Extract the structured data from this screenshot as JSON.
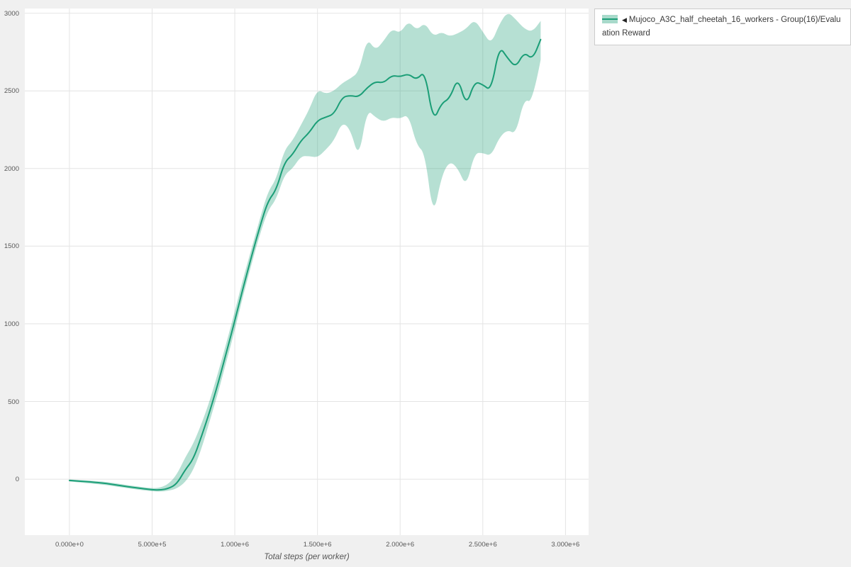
{
  "legend": {
    "toggle_icon": "◀"
  },
  "chart_data": {
    "type": "line",
    "title": "",
    "xlabel": "Total steps (per worker)",
    "ylabel": "",
    "grid": true,
    "legend_position": "top-right",
    "xlim": [
      -270000,
      3140000
    ],
    "ylim": [
      -360,
      3030
    ],
    "x_tick_values": [
      0,
      500000,
      1000000,
      1500000,
      2000000,
      2500000,
      3000000
    ],
    "x_tick_labels": [
      "0.000e+0",
      "5.000e+5",
      "1.000e+6",
      "1.500e+6",
      "2.000e+6",
      "2.500e+6",
      "3.000e+6"
    ],
    "y_tick_values": [
      0,
      500,
      1000,
      1500,
      2000,
      2500,
      3000
    ],
    "y_tick_labels": [
      "0",
      "500",
      "1000",
      "1500",
      "2000",
      "2500",
      "3000"
    ],
    "grid_color": "#e4e4e4",
    "series": [
      {
        "name": "Mujoco_A3C_half_cheetah_16_workers - Group(16)/Evaluation Reward",
        "color": "#1b9e77",
        "band_color": "#1b9e77",
        "band_opacity": 0.32,
        "x": [
          0,
          50000,
          100000,
          150000,
          200000,
          250000,
          300000,
          350000,
          400000,
          450000,
          500000,
          550000,
          600000,
          650000,
          700000,
          750000,
          800000,
          850000,
          900000,
          950000,
          1000000,
          1050000,
          1100000,
          1150000,
          1200000,
          1250000,
          1300000,
          1350000,
          1400000,
          1450000,
          1500000,
          1550000,
          1600000,
          1650000,
          1700000,
          1750000,
          1800000,
          1850000,
          1900000,
          1950000,
          2000000,
          2050000,
          2100000,
          2150000,
          2200000,
          2250000,
          2300000,
          2350000,
          2400000,
          2450000,
          2500000,
          2550000,
          2600000,
          2650000,
          2700000,
          2750000,
          2800000,
          2850000
        ],
        "mean": [
          -8,
          -12,
          -15,
          -20,
          -25,
          -32,
          -40,
          -48,
          -55,
          -62,
          -68,
          -70,
          -60,
          -30,
          60,
          130,
          280,
          440,
          620,
          820,
          1020,
          1230,
          1430,
          1620,
          1790,
          1860,
          2040,
          2090,
          2180,
          2230,
          2310,
          2330,
          2350,
          2460,
          2470,
          2460,
          2520,
          2560,
          2550,
          2600,
          2590,
          2610,
          2570,
          2630,
          2300,
          2420,
          2450,
          2590,
          2400,
          2560,
          2540,
          2500,
          2790,
          2710,
          2650,
          2750,
          2700,
          2830
        ],
        "lower": [
          -15,
          -20,
          -25,
          -30,
          -35,
          -42,
          -50,
          -58,
          -65,
          -72,
          -78,
          -80,
          -75,
          -60,
          -20,
          60,
          200,
          380,
          560,
          760,
          960,
          1180,
          1380,
          1570,
          1730,
          1800,
          1960,
          2000,
          2080,
          2080,
          2070,
          2120,
          2180,
          2300,
          2250,
          2060,
          2380,
          2330,
          2300,
          2330,
          2320,
          2350,
          2150,
          2100,
          1680,
          1950,
          2050,
          2000,
          1880,
          2100,
          2100,
          2080,
          2200,
          2250,
          2220,
          2450,
          2420,
          2700
        ],
        "upper": [
          -2,
          -5,
          -8,
          -12,
          -15,
          -22,
          -30,
          -38,
          -45,
          -52,
          -58,
          -55,
          -30,
          30,
          140,
          230,
          360,
          510,
          690,
          880,
          1080,
          1290,
          1480,
          1670,
          1850,
          1930,
          2120,
          2180,
          2280,
          2380,
          2510,
          2480,
          2500,
          2550,
          2580,
          2620,
          2840,
          2760,
          2820,
          2900,
          2870,
          2950,
          2890,
          2940,
          2850,
          2880,
          2850,
          2870,
          2900,
          2960,
          2880,
          2800,
          2930,
          3010,
          2960,
          2900,
          2880,
          2950
        ]
      }
    ]
  }
}
